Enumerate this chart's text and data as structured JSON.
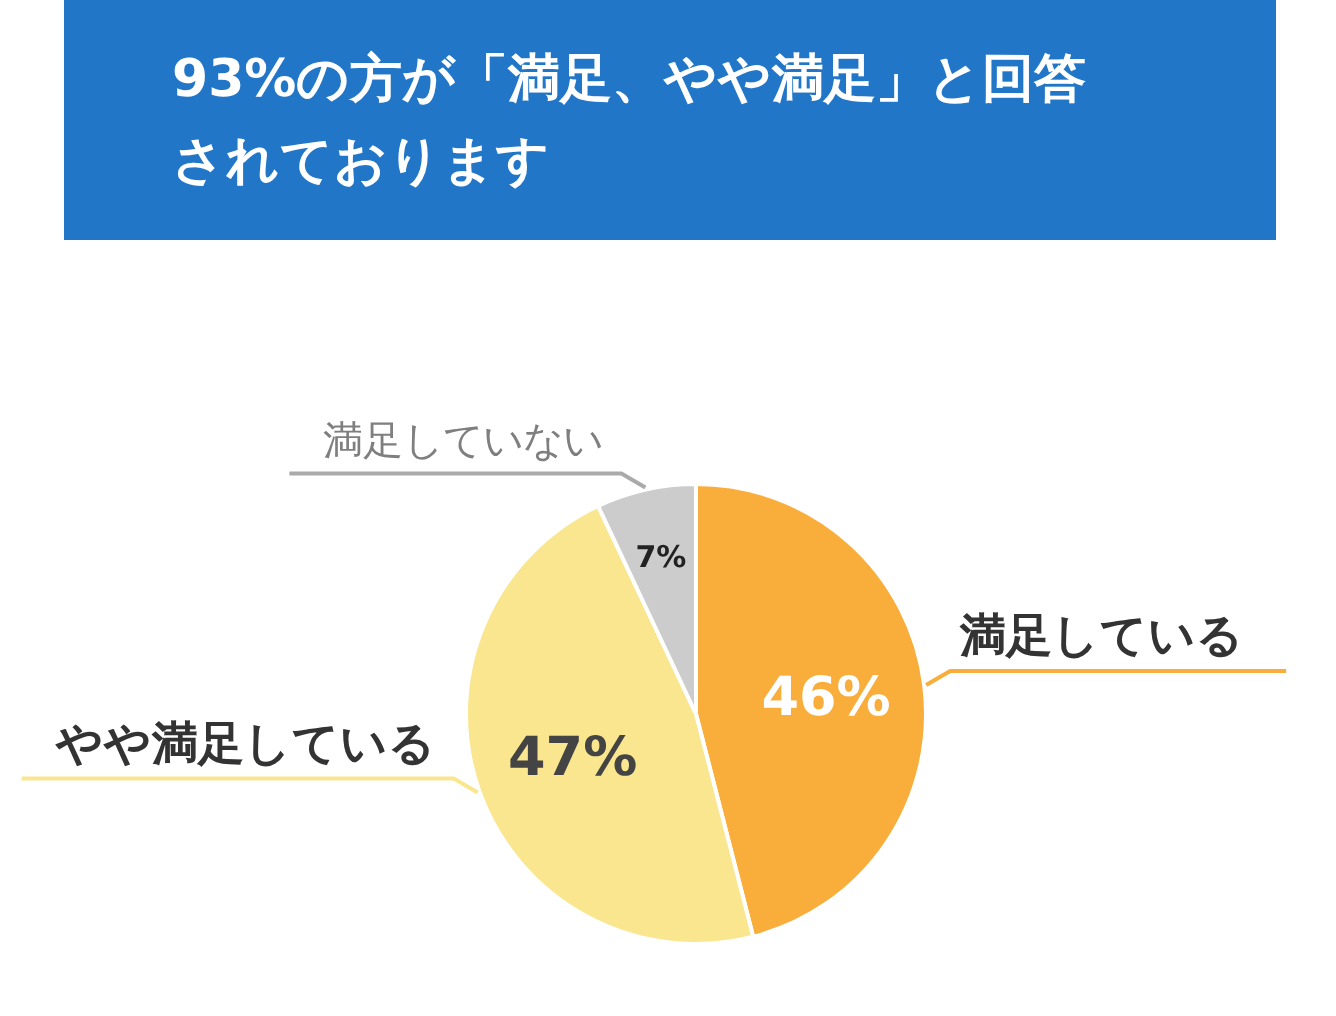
{
  "chart_data": {
    "type": "pie",
    "title": "93%の方が「満足、やや満足」と回答されております",
    "categories": [
      "満足している",
      "やや満足している",
      "満足していない"
    ],
    "values": [
      46,
      47,
      7
    ],
    "colors": [
      "#f9ae3b",
      "#f9e68f",
      "#cccccc"
    ],
    "value_labels": [
      "46%",
      "47%",
      "7%"
    ]
  }
}
